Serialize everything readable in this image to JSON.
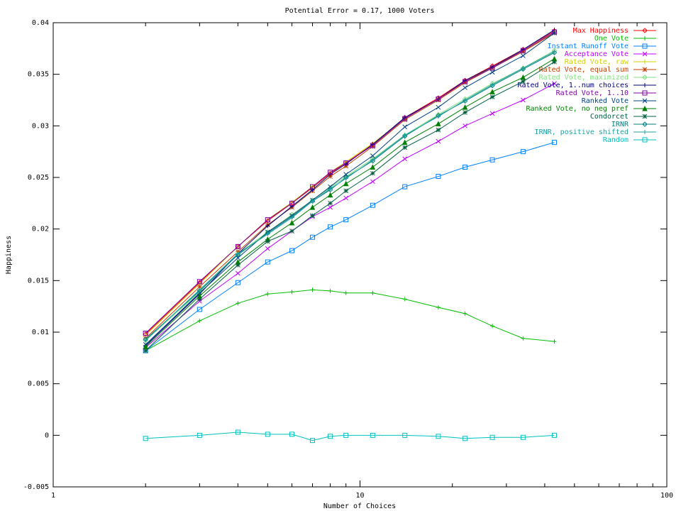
{
  "chart_data": {
    "type": "line",
    "title": "Potential Error = 0.17, 1000 Voters",
    "x_label": "Number of Choices",
    "y_label": "Happiness",
    "x_log": true,
    "xlim": [
      1,
      100
    ],
    "xticks": [
      1,
      10,
      100
    ],
    "xminorticks": [
      2,
      3,
      4,
      5,
      6,
      7,
      8,
      9,
      20,
      30,
      40,
      50,
      60,
      70,
      80,
      90
    ],
    "ylim": [
      -0.005,
      0.04
    ],
    "yticks": [
      -0.005,
      0,
      0.005,
      0.01,
      0.015,
      0.02,
      0.025,
      0.03,
      0.035,
      0.04
    ],
    "grid": false,
    "legend": "top-right",
    "x": [
      2,
      3,
      4,
      5,
      6,
      7,
      8,
      9,
      11,
      14,
      18,
      22,
      27,
      34,
      43
    ],
    "series": [
      {
        "name": "Max Happiness",
        "color": "#ff0000",
        "marker": "diamond",
        "values": [
          0.0098,
          0.0148,
          0.0183,
          0.0208,
          0.0225,
          0.024,
          0.0254,
          0.0264,
          0.0282,
          0.0308,
          0.0327,
          0.0344,
          0.0358,
          0.0374,
          0.0392
        ]
      },
      {
        "name": "One Vote",
        "color": "#00c000",
        "marker": "plus",
        "values": [
          0.0082,
          0.0111,
          0.0128,
          0.0137,
          0.0139,
          0.0141,
          0.014,
          0.0138,
          0.0138,
          0.0132,
          0.0124,
          0.0118,
          0.0106,
          0.0094,
          0.0091
        ]
      },
      {
        "name": "Instant Runoff Vote",
        "color": "#0080ff",
        "marker": "square",
        "values": [
          0.0082,
          0.0122,
          0.0148,
          0.0168,
          0.0179,
          0.0192,
          0.0202,
          0.0209,
          0.0223,
          0.0241,
          0.0251,
          0.026,
          0.0267,
          0.0275,
          0.0284
        ]
      },
      {
        "name": "Acceptance Vote",
        "color": "#c000ff",
        "marker": "x",
        "values": [
          0.0085,
          0.013,
          0.0157,
          0.0181,
          0.0198,
          0.0212,
          0.0221,
          0.023,
          0.0246,
          0.0268,
          0.0285,
          0.03,
          0.0312,
          0.0325,
          0.0341
        ]
      },
      {
        "name": "Rated Vote, raw",
        "color": "#d0d000",
        "marker": "plus",
        "values": [
          0.0097,
          0.0147,
          0.0183,
          0.0209,
          0.0226,
          0.0241,
          0.0255,
          0.0265,
          0.0283,
          0.0307,
          0.0326,
          0.0343,
          0.0357,
          0.0373,
          0.039
        ]
      },
      {
        "name": "Rated Vote, equal sum",
        "color": "#c04000",
        "marker": "star",
        "values": [
          0.0094,
          0.0144,
          0.0178,
          0.0204,
          0.0221,
          0.0237,
          0.0251,
          0.0261,
          0.028,
          0.0306,
          0.0325,
          0.0342,
          0.0356,
          0.0372,
          0.039
        ]
      },
      {
        "name": "Rated Vote, maximized",
        "color": "#80e080",
        "marker": "diamond",
        "values": [
          0.0092,
          0.0139,
          0.0176,
          0.0197,
          0.0214,
          0.0228,
          0.024,
          0.0251,
          0.0268,
          0.0291,
          0.0311,
          0.0326,
          0.0341,
          0.0356,
          0.0373
        ]
      },
      {
        "name": "Rated Vote, 1..num choices",
        "color": "#000080",
        "marker": "plus",
        "values": [
          0.0087,
          0.0137,
          0.0176,
          0.0203,
          0.0222,
          0.0238,
          0.0253,
          0.0263,
          0.0282,
          0.0308,
          0.0326,
          0.0344,
          0.0357,
          0.0374,
          0.0393
        ]
      },
      {
        "name": "Rated Vote, 1..10",
        "color": "#8000a0",
        "marker": "square",
        "values": [
          0.0099,
          0.0149,
          0.0183,
          0.0209,
          0.0225,
          0.0241,
          0.0255,
          0.0264,
          0.0281,
          0.0307,
          0.0326,
          0.0343,
          0.0356,
          0.0373,
          0.0391
        ]
      },
      {
        "name": "Ranked Vote",
        "color": "#004080",
        "marker": "x",
        "values": [
          0.0088,
          0.0138,
          0.0172,
          0.0197,
          0.0213,
          0.0228,
          0.0241,
          0.0253,
          0.0271,
          0.0299,
          0.0318,
          0.0337,
          0.0352,
          0.0368,
          0.039
        ]
      },
      {
        "name": "Ranked Vote, no neg pref",
        "color": "#008000",
        "marker": "triangle",
        "values": [
          0.0086,
          0.0135,
          0.0168,
          0.019,
          0.0206,
          0.0221,
          0.0233,
          0.0244,
          0.026,
          0.0284,
          0.0302,
          0.0318,
          0.0333,
          0.0347,
          0.0365
        ]
      },
      {
        "name": "Condorcet",
        "color": "#006040",
        "marker": "star",
        "values": [
          0.0082,
          0.0132,
          0.0165,
          0.0188,
          0.0198,
          0.0213,
          0.0225,
          0.0237,
          0.0254,
          0.0279,
          0.0296,
          0.0313,
          0.0328,
          0.0343,
          0.0362
        ]
      },
      {
        "name": "IRNR",
        "color": "#008080",
        "marker": "diamond",
        "values": [
          0.0093,
          0.014,
          0.0175,
          0.0196,
          0.0212,
          0.0227,
          0.0238,
          0.025,
          0.0266,
          0.029,
          0.031,
          0.0324,
          0.0339,
          0.0355,
          0.0371
        ]
      },
      {
        "name": "IRNR, positive shifted",
        "color": "#20a0a0",
        "marker": "plus",
        "values": [
          0.0092,
          0.0141,
          0.0176,
          0.0195,
          0.0211,
          0.0227,
          0.0239,
          0.0249,
          0.0267,
          0.0291,
          0.0309,
          0.0325,
          0.034,
          0.0356,
          0.0372
        ]
      },
      {
        "name": "Random",
        "color": "#00c0c0",
        "marker": "square",
        "values": [
          -0.0003,
          0.0,
          0.0003,
          0.0001,
          0.0001,
          -0.0005,
          -0.0001,
          0.0,
          0.0,
          0.0,
          -0.0001,
          -0.0003,
          -0.0002,
          -0.0002,
          0.0
        ]
      }
    ]
  }
}
